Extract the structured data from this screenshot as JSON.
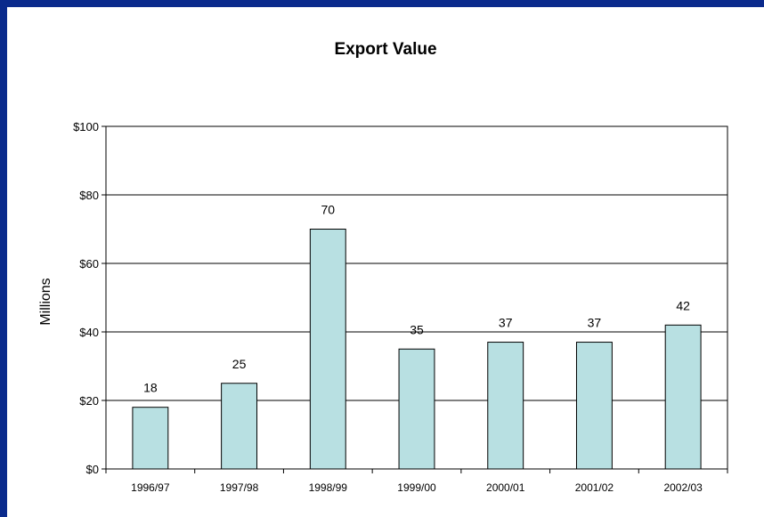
{
  "chart_data": {
    "type": "bar",
    "title": "Export Value",
    "xlabel": "",
    "ylabel": "Millions",
    "categories": [
      "1996/97",
      "1997/98",
      "1998/99",
      "1999/00",
      "2000/01",
      "2001/02",
      "2002/03"
    ],
    "values": [
      18,
      25,
      70,
      35,
      37,
      37,
      42
    ],
    "data_labels": [
      "18",
      "25",
      "70",
      "35",
      "37",
      "37",
      "42"
    ],
    "ylim": [
      0,
      100
    ],
    "yticks": [
      0,
      20,
      40,
      60,
      80,
      100
    ],
    "ytick_labels": [
      "$0",
      "$20",
      "$40",
      "$60",
      "$80",
      "$100"
    ],
    "grid": true,
    "legend": "none",
    "bar_color": "#b8e0e2"
  },
  "colors": {
    "frame_border": "#0a2a8c",
    "background": "#ffffff"
  }
}
